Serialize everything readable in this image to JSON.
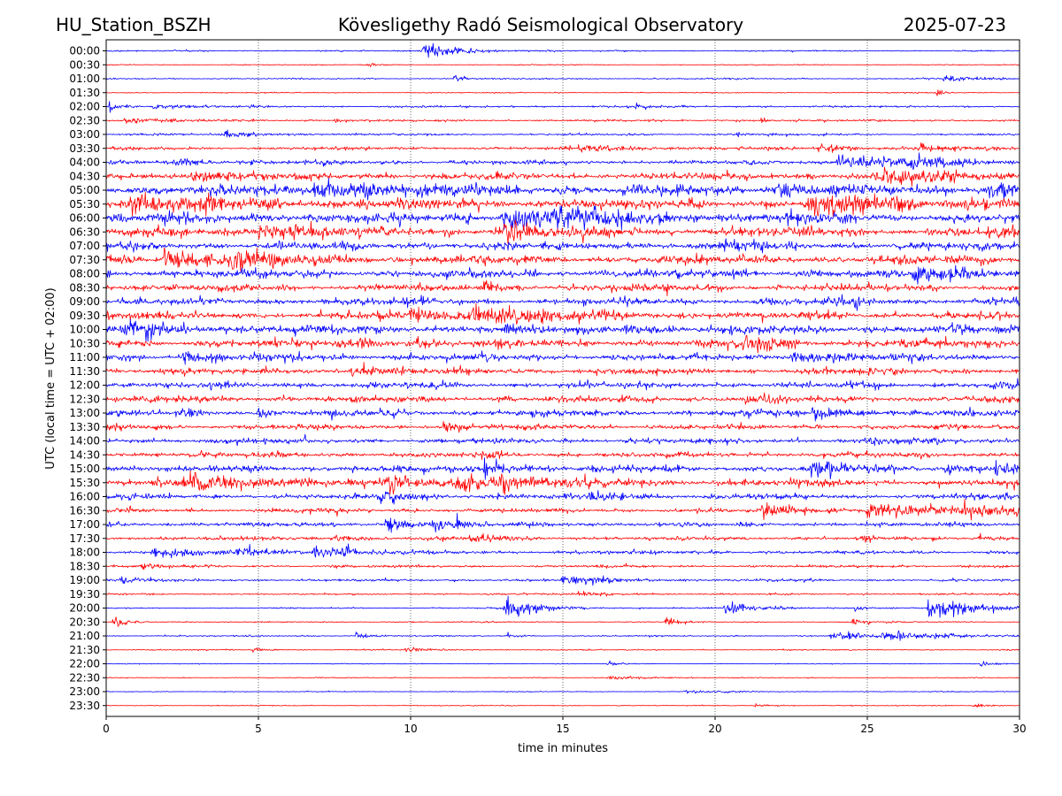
{
  "header": {
    "station": "HU_Station_BSZH",
    "observatory": "Kövesligethy Radó Seismological Observatory",
    "date": "2025-07-23"
  },
  "chart_data": {
    "type": "line",
    "chart_kind": "helicorder",
    "xlabel": "time in minutes",
    "ylabel": "UTC (local time = UTC + 02:00)",
    "xlim": [
      0,
      30
    ],
    "x_ticks": [
      0,
      5,
      10,
      15,
      20,
      25,
      30
    ],
    "x_tick_labels": [
      "0",
      "5",
      "10",
      "15",
      "20",
      "25",
      "30"
    ],
    "grid": "vertical dotted at every x tick",
    "colors": {
      "odd_row": "#0000ff",
      "even_row": "#ff0000"
    },
    "rows": [
      {
        "label": "00:00",
        "noise": 0.08,
        "events": [
          {
            "t": 10.35,
            "amp": 1.0,
            "dur": 0.9
          },
          {
            "t": 11.5,
            "amp": 0.25,
            "dur": 0.6
          }
        ]
      },
      {
        "label": "00:30",
        "noise": 0.06,
        "events": [
          {
            "t": 8.6,
            "amp": 0.25,
            "dur": 0.2
          }
        ]
      },
      {
        "label": "01:00",
        "noise": 0.08,
        "events": [
          {
            "t": 11.45,
            "amp": 0.5,
            "dur": 0.3
          },
          {
            "t": 27.5,
            "amp": 0.3,
            "dur": 1.5
          }
        ]
      },
      {
        "label": "01:30",
        "noise": 0.06,
        "events": [
          {
            "t": 27.3,
            "amp": 0.4,
            "dur": 0.2
          }
        ]
      },
      {
        "label": "02:00",
        "noise": 0.12,
        "events": [
          {
            "t": 0.1,
            "amp": 0.6,
            "dur": 0.3
          },
          {
            "t": 1.5,
            "amp": 0.3,
            "dur": 1.2
          },
          {
            "t": 17.4,
            "amp": 0.3,
            "dur": 0.3
          }
        ]
      },
      {
        "label": "02:30",
        "noise": 0.12,
        "events": [
          {
            "t": 0.6,
            "amp": 0.35,
            "dur": 1.0
          },
          {
            "t": 7.5,
            "amp": 0.3,
            "dur": 0.3
          },
          {
            "t": 21.5,
            "amp": 0.45,
            "dur": 0.2
          }
        ]
      },
      {
        "label": "03:00",
        "noise": 0.12,
        "events": [
          {
            "t": 3.9,
            "amp": 0.55,
            "dur": 0.8
          },
          {
            "t": 20.7,
            "amp": 0.35,
            "dur": 0.4
          }
        ]
      },
      {
        "label": "03:30",
        "noise": 0.18,
        "events": [
          {
            "t": 15.5,
            "amp": 0.35,
            "dur": 1.5
          },
          {
            "t": 23.4,
            "amp": 0.45,
            "dur": 1.0
          },
          {
            "t": 26.7,
            "amp": 0.45,
            "dur": 0.8
          }
        ]
      },
      {
        "label": "04:00",
        "noise": 0.25,
        "events": [
          {
            "t": 2.2,
            "amp": 0.45,
            "dur": 0.8
          },
          {
            "t": 24.0,
            "amp": 0.6,
            "dur": 3.0
          },
          {
            "t": 26.3,
            "amp": 0.8,
            "dur": 0.6
          }
        ]
      },
      {
        "label": "04:30",
        "noise": 0.4,
        "events": [
          {
            "t": 2.8,
            "amp": 0.8,
            "dur": 0.8
          },
          {
            "t": 25.2,
            "amp": 0.7,
            "dur": 2.0
          }
        ]
      },
      {
        "label": "05:00",
        "noise": 0.55,
        "events": [
          {
            "t": 6.8,
            "amp": 0.9,
            "dur": 2.5
          },
          {
            "t": 22.0,
            "amp": 1.0,
            "dur": 0.8
          },
          {
            "t": 29.0,
            "amp": 1.0,
            "dur": 1.5
          }
        ]
      },
      {
        "label": "05:30",
        "noise": 0.6,
        "events": [
          {
            "t": 0.8,
            "amp": 1.0,
            "dur": 2.0
          },
          {
            "t": 23.0,
            "amp": 1.0,
            "dur": 3.0
          }
        ]
      },
      {
        "label": "06:00",
        "noise": 0.6,
        "events": [
          {
            "t": 13.0,
            "amp": 1.1,
            "dur": 3.0
          },
          {
            "t": 14.6,
            "amp": 1.1,
            "dur": 0.8
          }
        ]
      },
      {
        "label": "06:30",
        "noise": 0.55,
        "events": [
          {
            "t": 13.1,
            "amp": 1.1,
            "dur": 1.0
          },
          {
            "t": 5.0,
            "amp": 0.8,
            "dur": 2.0
          }
        ]
      },
      {
        "label": "07:00",
        "noise": 0.45,
        "events": [
          {
            "t": 20.3,
            "amp": 0.7,
            "dur": 0.8
          }
        ]
      },
      {
        "label": "07:30",
        "noise": 0.5,
        "events": [
          {
            "t": 1.9,
            "amp": 1.2,
            "dur": 1.5
          },
          {
            "t": 4.0,
            "amp": 1.2,
            "dur": 1.0
          }
        ]
      },
      {
        "label": "08:00",
        "noise": 0.45,
        "events": [
          {
            "t": 26.5,
            "amp": 0.8,
            "dur": 2.0
          }
        ]
      },
      {
        "label": "08:30",
        "noise": 0.4,
        "events": [
          {
            "t": 12.4,
            "amp": 0.6,
            "dur": 0.5
          }
        ]
      },
      {
        "label": "09:00",
        "noise": 0.4,
        "events": [
          {
            "t": 21.5,
            "amp": 0.6,
            "dur": 0.3
          },
          {
            "t": 24.5,
            "amp": 0.6,
            "dur": 0.5
          }
        ]
      },
      {
        "label": "09:30",
        "noise": 0.45,
        "events": [
          {
            "t": 12.0,
            "amp": 0.8,
            "dur": 2.0
          },
          {
            "t": 10.0,
            "amp": 0.7,
            "dur": 1.5
          }
        ]
      },
      {
        "label": "10:00",
        "noise": 0.5,
        "events": [
          {
            "t": 0.5,
            "amp": 0.7,
            "dur": 1.5
          },
          {
            "t": 17.0,
            "amp": 0.6,
            "dur": 1.0
          }
        ]
      },
      {
        "label": "10:30",
        "noise": 0.45,
        "events": [
          {
            "t": 8.3,
            "amp": 0.7,
            "dur": 0.5
          },
          {
            "t": 10.2,
            "amp": 0.6,
            "dur": 0.3
          },
          {
            "t": 20.9,
            "amp": 1.0,
            "dur": 0.8
          }
        ]
      },
      {
        "label": "11:00",
        "noise": 0.4,
        "events": [
          {
            "t": 2.5,
            "amp": 0.6,
            "dur": 1.0
          },
          {
            "t": 22.5,
            "amp": 0.6,
            "dur": 1.5
          }
        ]
      },
      {
        "label": "11:30",
        "noise": 0.35,
        "events": [
          {
            "t": 8.0,
            "amp": 0.6,
            "dur": 1.0
          }
        ]
      },
      {
        "label": "12:00",
        "noise": 0.35,
        "events": [
          {
            "t": 29.0,
            "amp": 0.5,
            "dur": 1.0
          }
        ]
      },
      {
        "label": "12:30",
        "noise": 0.35,
        "events": [
          {
            "t": 21.0,
            "amp": 0.5,
            "dur": 0.5
          }
        ]
      },
      {
        "label": "13:00",
        "noise": 0.35,
        "events": [
          {
            "t": 2.5,
            "amp": 0.6,
            "dur": 0.3
          },
          {
            "t": 5.0,
            "amp": 0.6,
            "dur": 0.3
          },
          {
            "t": 9.0,
            "amp": 0.6,
            "dur": 0.4
          },
          {
            "t": 23.2,
            "amp": 0.7,
            "dur": 1.0
          }
        ]
      },
      {
        "label": "13:30",
        "noise": 0.3,
        "events": [
          {
            "t": 11.0,
            "amp": 0.4,
            "dur": 1.0
          }
        ]
      },
      {
        "label": "14:00",
        "noise": 0.3,
        "events": [
          {
            "t": 25.0,
            "amp": 0.4,
            "dur": 1.0
          }
        ]
      },
      {
        "label": "14:30",
        "noise": 0.3,
        "events": [
          {
            "t": 12.3,
            "amp": 0.6,
            "dur": 0.4
          }
        ]
      },
      {
        "label": "15:00",
        "noise": 0.35,
        "events": [
          {
            "t": 12.4,
            "amp": 1.0,
            "dur": 0.8
          },
          {
            "t": 23.2,
            "amp": 1.0,
            "dur": 1.2
          },
          {
            "t": 27.6,
            "amp": 0.8,
            "dur": 0.5
          },
          {
            "t": 29.2,
            "amp": 0.7,
            "dur": 0.8
          }
        ]
      },
      {
        "label": "15:30",
        "noise": 0.4,
        "events": [
          {
            "t": 2.5,
            "amp": 0.9,
            "dur": 3.0
          },
          {
            "t": 9.1,
            "amp": 1.0,
            "dur": 0.5
          },
          {
            "t": 11.5,
            "amp": 1.0,
            "dur": 2.0
          },
          {
            "t": 12.8,
            "amp": 1.0,
            "dur": 0.5
          }
        ]
      },
      {
        "label": "16:00",
        "noise": 0.3,
        "events": [
          {
            "t": 9.0,
            "amp": 0.6,
            "dur": 1.0
          },
          {
            "t": 15.9,
            "amp": 0.6,
            "dur": 0.8
          }
        ]
      },
      {
        "label": "16:30",
        "noise": 0.25,
        "events": [
          {
            "t": 21.5,
            "amp": 0.8,
            "dur": 1.0
          },
          {
            "t": 25.0,
            "amp": 0.7,
            "dur": 3.0
          },
          {
            "t": 28.2,
            "amp": 0.8,
            "dur": 0.5
          },
          {
            "t": 29.8,
            "amp": 0.7,
            "dur": 0.4
          }
        ]
      },
      {
        "label": "17:00",
        "noise": 0.25,
        "events": [
          {
            "t": 9.2,
            "amp": 0.9,
            "dur": 0.6
          },
          {
            "t": 10.7,
            "amp": 0.6,
            "dur": 0.6
          },
          {
            "t": 11.5,
            "amp": 0.5,
            "dur": 0.3
          }
        ]
      },
      {
        "label": "17:30",
        "noise": 0.22,
        "events": [
          {
            "t": 7.5,
            "amp": 0.5,
            "dur": 0.5
          },
          {
            "t": 12.0,
            "amp": 0.4,
            "dur": 0.8
          },
          {
            "t": 28.5,
            "amp": 0.4,
            "dur": 0.5
          }
        ]
      },
      {
        "label": "18:00",
        "noise": 0.2,
        "events": [
          {
            "t": 1.5,
            "amp": 0.5,
            "dur": 1.5
          },
          {
            "t": 4.2,
            "amp": 0.6,
            "dur": 1.0
          },
          {
            "t": 6.8,
            "amp": 0.6,
            "dur": 1.0
          },
          {
            "t": 7.8,
            "amp": 0.6,
            "dur": 0.3
          }
        ]
      },
      {
        "label": "18:30",
        "noise": 0.15,
        "events": [
          {
            "t": 1.1,
            "amp": 0.5,
            "dur": 0.5
          }
        ]
      },
      {
        "label": "19:00",
        "noise": 0.14,
        "events": [
          {
            "t": 0.5,
            "amp": 0.4,
            "dur": 0.8
          },
          {
            "t": 15.0,
            "amp": 0.5,
            "dur": 1.5
          }
        ]
      },
      {
        "label": "19:30",
        "noise": 0.1,
        "events": [
          {
            "t": 15.5,
            "amp": 0.3,
            "dur": 1.0
          }
        ]
      },
      {
        "label": "20:00",
        "noise": 0.08,
        "events": [
          {
            "t": 13.1,
            "amp": 1.2,
            "dur": 1.0
          },
          {
            "t": 20.3,
            "amp": 0.8,
            "dur": 1.0
          },
          {
            "t": 24.6,
            "amp": 0.4,
            "dur": 0.3
          },
          {
            "t": 27.0,
            "amp": 1.2,
            "dur": 1.5
          }
        ]
      },
      {
        "label": "20:30",
        "noise": 0.07,
        "events": [
          {
            "t": 0.25,
            "amp": 0.7,
            "dur": 0.4
          },
          {
            "t": 18.4,
            "amp": 0.6,
            "dur": 0.3
          },
          {
            "t": 24.5,
            "amp": 0.4,
            "dur": 0.4
          }
        ]
      },
      {
        "label": "21:00",
        "noise": 0.08,
        "events": [
          {
            "t": 8.2,
            "amp": 0.5,
            "dur": 0.3
          },
          {
            "t": 13.2,
            "amp": 0.4,
            "dur": 0.2
          },
          {
            "t": 23.8,
            "amp": 0.6,
            "dur": 1.0
          },
          {
            "t": 25.5,
            "amp": 0.5,
            "dur": 2.0
          }
        ]
      },
      {
        "label": "21:30",
        "noise": 0.07,
        "events": [
          {
            "t": 4.8,
            "amp": 0.4,
            "dur": 0.3
          },
          {
            "t": 9.8,
            "amp": 0.4,
            "dur": 0.5
          }
        ]
      },
      {
        "label": "22:00",
        "noise": 0.05,
        "events": [
          {
            "t": 16.5,
            "amp": 0.3,
            "dur": 0.3
          },
          {
            "t": 28.7,
            "amp": 0.5,
            "dur": 0.3
          }
        ]
      },
      {
        "label": "22:30",
        "noise": 0.05,
        "events": [
          {
            "t": 16.5,
            "amp": 0.3,
            "dur": 1.0
          }
        ]
      },
      {
        "label": "23:00",
        "noise": 0.05,
        "events": [
          {
            "t": 19.0,
            "amp": 0.2,
            "dur": 1.0
          }
        ]
      },
      {
        "label": "23:30",
        "noise": 0.05,
        "events": [
          {
            "t": 21.3,
            "amp": 0.2,
            "dur": 0.5
          },
          {
            "t": 28.5,
            "amp": 0.2,
            "dur": 0.5
          }
        ]
      }
    ]
  }
}
